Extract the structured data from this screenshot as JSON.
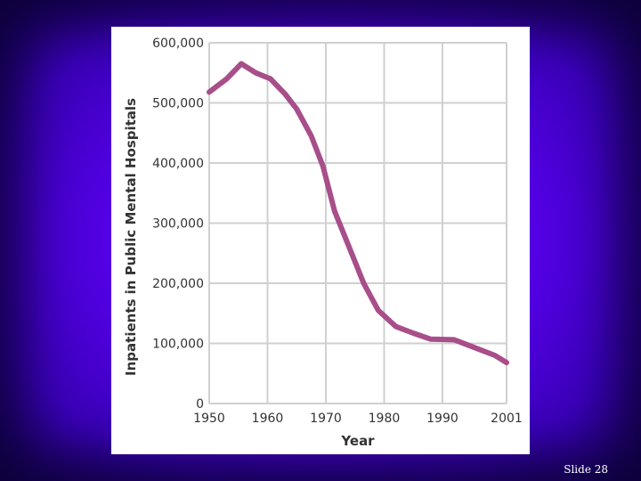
{
  "slide": {
    "number_label": "Slide 28"
  },
  "colors": {
    "line": "#a84e8a",
    "grid": "#d0d0d0",
    "panel": "#ffffff",
    "background": "#5a00f0"
  },
  "chart_data": {
    "type": "line",
    "xlabel": "Year",
    "ylabel": "Inpatients in Public Mental Hospitals",
    "xlim": [
      1950,
      2001
    ],
    "ylim": [
      0,
      600000
    ],
    "x_ticks": [
      1950,
      1960,
      1970,
      1980,
      1990,
      2001
    ],
    "x_tick_labels": [
      "1950",
      "1960",
      "1970",
      "1980",
      "1990",
      "2001"
    ],
    "y_ticks": [
      0,
      100000,
      200000,
      300000,
      400000,
      500000,
      600000
    ],
    "y_tick_labels": [
      "0",
      "100,000",
      "200,000",
      "300,000",
      "400,000",
      "500,000",
      "600,000"
    ],
    "grid": true,
    "series": [
      {
        "x": [
          1950,
          1953,
          1955.5,
          1958,
          1960.5,
          1963,
          1965,
          1967.5,
          1969.5,
          1971.5,
          1974,
          1976.5,
          1979,
          1982,
          1985,
          1988,
          1992,
          1995,
          1999,
          2001
        ],
        "y": [
          518000,
          540000,
          565000,
          550000,
          540000,
          515000,
          490000,
          445000,
          395000,
          320000,
          260000,
          200000,
          155000,
          128000,
          117000,
          107000,
          106000,
          95000,
          80000,
          68000
        ]
      }
    ]
  }
}
